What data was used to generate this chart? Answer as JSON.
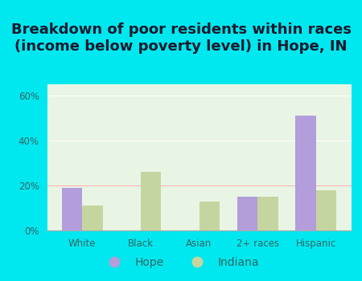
{
  "title": "Breakdown of poor residents within races\n(income below poverty level) in Hope, IN",
  "categories": [
    "White",
    "Black",
    "Asian",
    "2+ races",
    "Hispanic"
  ],
  "hope_values": [
    19,
    0,
    0,
    15,
    51
  ],
  "indiana_values": [
    11,
    26,
    13,
    15,
    18
  ],
  "hope_color": "#b39ddb",
  "indiana_color": "#c5d5a0",
  "background_outer": "#00e8ef",
  "background_inner": "#e8f5e5",
  "ylim": [
    0,
    65
  ],
  "yticks": [
    0,
    20,
    40,
    60
  ],
  "ytick_labels": [
    "0%",
    "20%",
    "40%",
    "60%"
  ],
  "bar_width": 0.35,
  "title_fontsize": 13,
  "tick_fontsize": 8.5,
  "legend_fontsize": 10,
  "title_color": "#1a1a2e",
  "tick_color": "#336666"
}
